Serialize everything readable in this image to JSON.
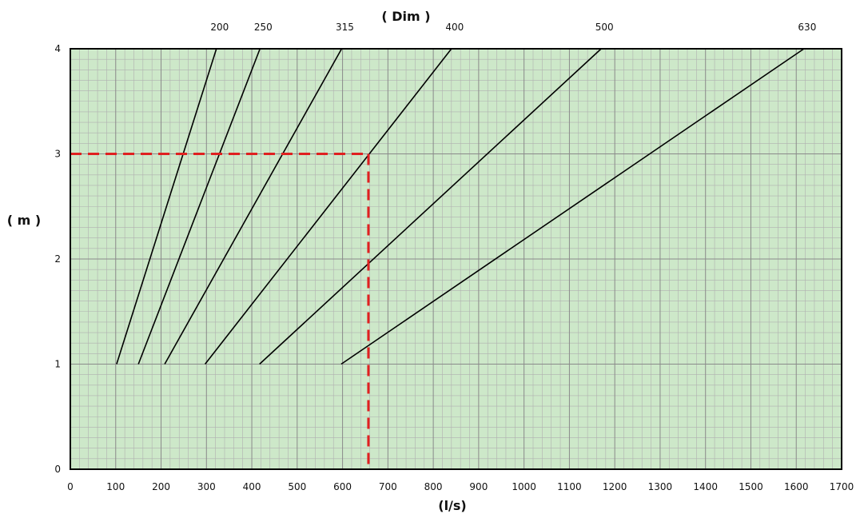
{
  "chart_data": {
    "type": "line",
    "title": "( Dim )",
    "xlabel": "(l/s)",
    "ylabel": "( m )",
    "xlim": [
      0,
      1700
    ],
    "ylim": [
      0,
      4
    ],
    "x_ticks": [
      "0",
      "100",
      "200",
      "300",
      "400",
      "500",
      "600",
      "700",
      "800",
      "900",
      "1000",
      "1100",
      "1200",
      "1300",
      "1400",
      "1500",
      "1600",
      "1700"
    ],
    "y_ticks": [
      "0",
      "1",
      "2",
      "3",
      "4"
    ],
    "grid": true,
    "colors": {
      "background": "#cde8c9",
      "major_grid": "#8a8a8a",
      "minor_grid": "#b0b0b0",
      "line": "#000000",
      "marker": "#e02020"
    },
    "series": [
      {
        "name": "200",
        "points": [
          [
            102,
            1
          ],
          [
            322,
            4
          ]
        ]
      },
      {
        "name": "250",
        "points": [
          [
            150,
            1
          ],
          [
            418,
            4
          ]
        ]
      },
      {
        "name": "315",
        "points": [
          [
            208,
            1
          ],
          [
            598,
            4
          ]
        ]
      },
      {
        "name": "400",
        "points": [
          [
            297,
            1
          ],
          [
            840,
            4
          ]
        ]
      },
      {
        "name": "500",
        "points": [
          [
            417,
            1
          ],
          [
            1170,
            4
          ]
        ]
      },
      {
        "name": "630",
        "points": [
          [
            597,
            1
          ],
          [
            1617,
            4
          ]
        ]
      }
    ],
    "annotation": {
      "style": "dashed",
      "color": "#e02020",
      "x": 657,
      "y": 3
    }
  }
}
